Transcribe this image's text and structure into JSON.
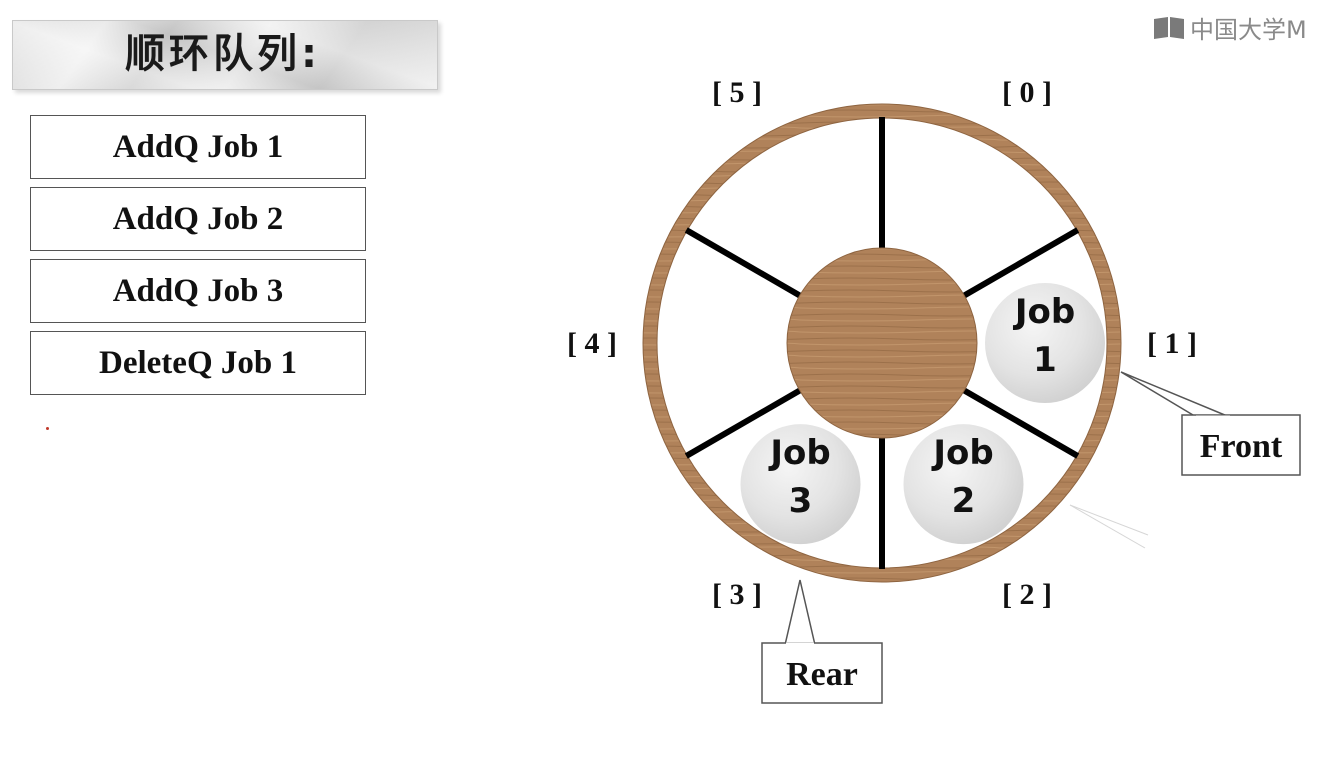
{
  "title": "顺环队列:",
  "watermark": "中国大学M",
  "operations": [
    "AddQ Job 1",
    "AddQ Job 2",
    "AddQ Job 3",
    "DeleteQ Job 1"
  ],
  "slot_labels": [
    "[ 0 ]",
    "[ 1 ]",
    "[ 2 ]",
    "[ 3 ]",
    "[ 4 ]",
    "[ 5 ]"
  ],
  "jobs": [
    {
      "slot": 1,
      "line1": "Job",
      "line2": "1"
    },
    {
      "slot": 2,
      "line1": "Job",
      "line2": "2"
    },
    {
      "slot": 3,
      "line1": "Job",
      "line2": "3"
    }
  ],
  "pointers": {
    "front": "Front",
    "rear": "Rear"
  },
  "colors": {
    "ring": "#b8895a",
    "hub": "#b0825a",
    "job_fill": "#e4e4e4",
    "spoke": "#000000"
  }
}
